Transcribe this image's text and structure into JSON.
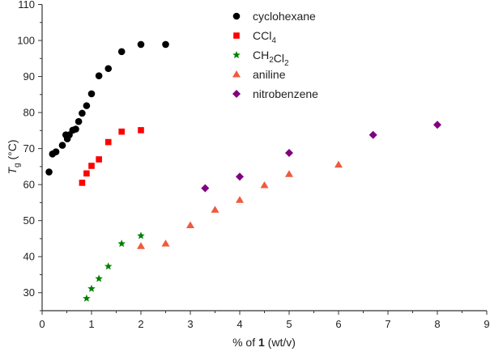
{
  "chart_data": {
    "type": "scatter",
    "xlabel_prefix": "% of ",
    "xlabel_bold": "1",
    "xlabel_suffix": " (wt/v)",
    "ylabel_main": "T",
    "ylabel_sub": "g",
    "ylabel_unit": " (°C)",
    "xlim": [
      0,
      9
    ],
    "ylim": [
      25,
      110
    ],
    "xticks": [
      0,
      1,
      2,
      3,
      4,
      5,
      6,
      7,
      8,
      9
    ],
    "yticks": [
      30,
      40,
      50,
      60,
      70,
      80,
      90,
      100,
      110
    ],
    "grid": false,
    "legend_placement": "top-right",
    "series": [
      {
        "name": "cyclohexane",
        "name_parts": [
          [
            "cyclohexane",
            ""
          ]
        ],
        "marker": "circle",
        "color": "#000000",
        "x": [
          0.14,
          0.21,
          0.28,
          0.41,
          0.48,
          0.51,
          0.55,
          0.62,
          0.68,
          0.74,
          0.81,
          0.9,
          1.0,
          1.15,
          1.34,
          1.61,
          2.0,
          2.5
        ],
        "y": [
          63.5,
          68.5,
          69.1,
          70.9,
          73.8,
          72.7,
          73.8,
          75.1,
          75.4,
          77.5,
          79.8,
          81.9,
          85.2,
          90.2,
          92.2,
          96.9,
          98.9,
          98.9
        ]
      },
      {
        "name": "CCl4",
        "name_parts": [
          [
            "CCl",
            "4"
          ]
        ],
        "marker": "square",
        "color": "#ff0000",
        "x": [
          0.81,
          0.9,
          1.0,
          1.15,
          1.34,
          1.61,
          2.0
        ],
        "y": [
          60.5,
          63.1,
          65.2,
          67.0,
          71.8,
          74.7,
          75.1
        ]
      },
      {
        "name": "CH2Cl2",
        "name_parts": [
          [
            "CH",
            "2"
          ],
          [
            "Cl",
            "2"
          ]
        ],
        "marker": "star",
        "color": "#008000",
        "x": [
          0.9,
          1.0,
          1.15,
          1.34,
          1.61,
          2.0
        ],
        "y": [
          28.4,
          31.1,
          33.9,
          37.3,
          43.6,
          45.8
        ]
      },
      {
        "name": "aniline",
        "name_parts": [
          [
            "aniline",
            ""
          ]
        ],
        "marker": "triangle",
        "color": "#f05a3c",
        "x": [
          2.0,
          2.5,
          3.0,
          3.5,
          4.0,
          4.5,
          5.0,
          6.0
        ],
        "y": [
          42.9,
          43.6,
          48.7,
          53.0,
          55.7,
          59.8,
          62.9,
          65.5
        ]
      },
      {
        "name": "nitrobenzene",
        "name_parts": [
          [
            "nitrobenzene",
            ""
          ]
        ],
        "marker": "diamond",
        "color": "#800080",
        "x": [
          3.3,
          4.0,
          5.0,
          6.7,
          8.0
        ],
        "y": [
          59.0,
          62.2,
          68.8,
          73.8,
          76.6
        ]
      }
    ]
  }
}
